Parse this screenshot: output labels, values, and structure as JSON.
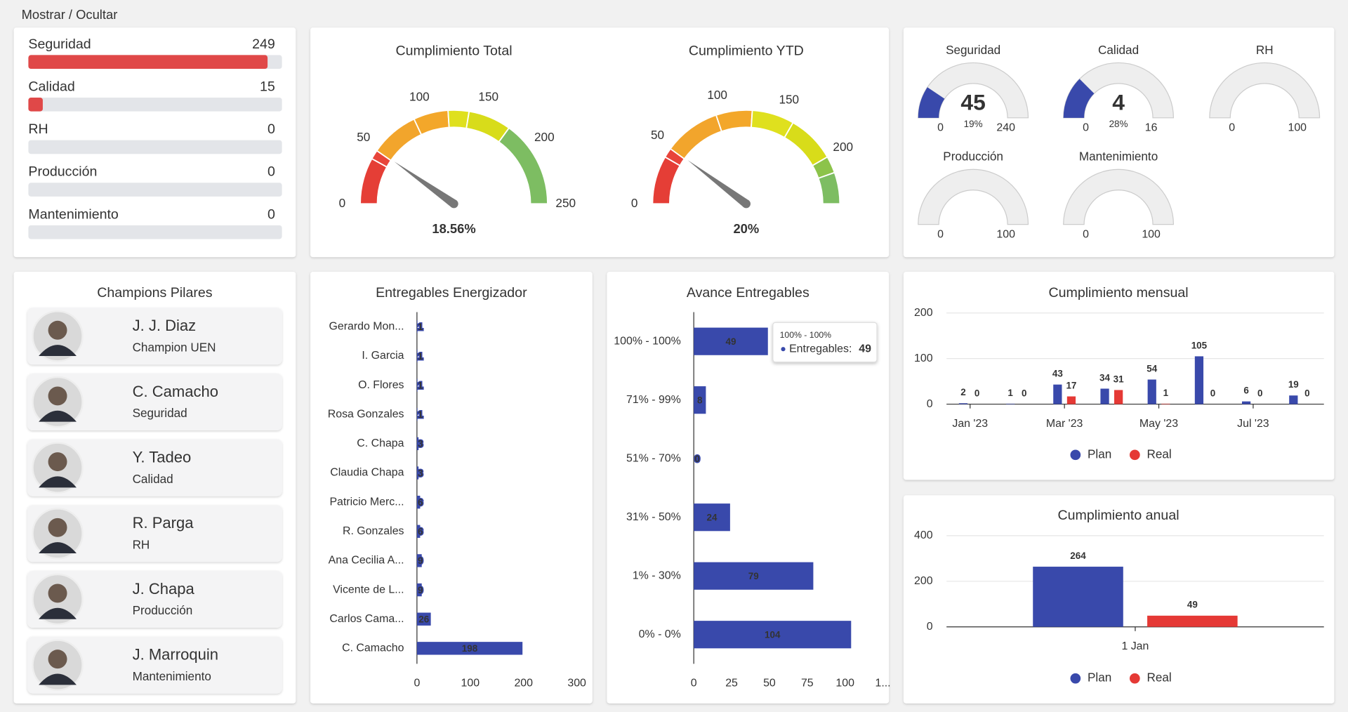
{
  "header": {
    "title": "Mostrar / Ocultar"
  },
  "pillars": {
    "xlim": [
      0,
      264
    ],
    "color": "#e04848",
    "track": "#e3e5e9",
    "items": [
      {
        "name": "Seguridad",
        "value": 249
      },
      {
        "name": "Calidad",
        "value": 15
      },
      {
        "name": "RH",
        "value": 0
      },
      {
        "name": "Producción",
        "value": 0
      },
      {
        "name": "Mantenimiento",
        "value": 0
      }
    ]
  },
  "gauges": [
    {
      "title": "Cumplimiento Total",
      "range": [
        0,
        250
      ],
      "ticks": [
        0,
        50,
        100,
        150,
        200,
        250
      ],
      "needle": 49,
      "label": "18.56%",
      "bands": [
        {
          "from": 0,
          "to": 40,
          "color": "#e53e36"
        },
        {
          "from": 40,
          "to": 48,
          "color": "#e8453a"
        },
        {
          "from": 48,
          "to": 90,
          "color": "#f2a52c"
        },
        {
          "from": 90,
          "to": 120,
          "color": "#f3a72a"
        },
        {
          "from": 120,
          "to": 138,
          "color": "#dfe01e"
        },
        {
          "from": 138,
          "to": 175,
          "color": "#d8dc1a"
        },
        {
          "from": 175,
          "to": 250,
          "color": "#7dbd62"
        }
      ]
    },
    {
      "title": "Cumplimiento YTD",
      "range": [
        0,
        240
      ],
      "ticks": [
        0,
        50,
        100,
        150,
        200
      ],
      "needle": 49,
      "label": "20%",
      "bands": [
        {
          "from": 0,
          "to": 40,
          "color": "#e53e36"
        },
        {
          "from": 40,
          "to": 48,
          "color": "#e8453a"
        },
        {
          "from": 48,
          "to": 95,
          "color": "#f2a52c"
        },
        {
          "from": 95,
          "to": 125,
          "color": "#f3a72a"
        },
        {
          "from": 125,
          "to": 160,
          "color": "#dfe01e"
        },
        {
          "from": 160,
          "to": 200,
          "color": "#d8dc1a"
        },
        {
          "from": 200,
          "to": 214,
          "color": "#8cc34a"
        },
        {
          "from": 214,
          "to": 240,
          "color": "#7dbd62"
        }
      ]
    }
  ],
  "mini_gauges": {
    "color": "#3949ab",
    "track": "#eeeeee",
    "items": [
      {
        "name": "Seguridad",
        "value": 45,
        "min": 0,
        "max": 240,
        "percent": "19%"
      },
      {
        "name": "Calidad",
        "value": 4,
        "min": 0,
        "max": 16,
        "percent": "28%"
      },
      {
        "name": "RH",
        "min": 0,
        "max": 100
      },
      {
        "name": "Producción",
        "min": 0,
        "max": 100
      },
      {
        "name": "Mantenimiento",
        "min": 0,
        "max": 100
      }
    ]
  },
  "champions": {
    "title": "Champions Pilares",
    "people": [
      {
        "name": "J. J. Diaz",
        "role": "Champion UEN"
      },
      {
        "name": "C. Camacho",
        "role": "Seguridad"
      },
      {
        "name": "Y. Tadeo",
        "role": "Calidad"
      },
      {
        "name": "R. Parga",
        "role": "RH"
      },
      {
        "name": "J. Chapa",
        "role": "Producción"
      },
      {
        "name": "J. Marroquin",
        "role": "Mantenimiento"
      }
    ]
  },
  "chart_data": [
    {
      "type": "hbar",
      "title": "Entregables Energizador",
      "color": "#3949ab",
      "categories": [
        "Gerardo Mon...",
        "I. Garcia",
        "O. Flores",
        "Rosa Gonzales",
        "C. Chapa",
        "Claudia Chapa",
        "Patricio Merc...",
        "R. Gonzales",
        "Ana Cecilia A...",
        "Vicente de L...",
        "Carlos Cama...",
        "C. Camacho"
      ],
      "values": [
        1,
        1,
        1,
        1,
        3,
        3,
        6,
        6,
        9,
        9,
        26,
        198
      ],
      "xlim": [
        0,
        300
      ],
      "xticks": [
        0,
        100,
        200,
        300
      ]
    },
    {
      "type": "hbar",
      "title": "Avance Entregables",
      "color": "#3949ab",
      "categories": [
        "100% - 100%",
        "71% - 99%",
        "51% - 70%",
        "31% - 50%",
        "1% - 30%",
        "0% - 0%"
      ],
      "values": [
        49,
        8,
        0,
        24,
        79,
        104
      ],
      "xlim": [
        0,
        125
      ],
      "xticks": [
        0,
        25,
        50,
        75,
        100,
        {
          "value": 125,
          "label": "1..."
        }
      ],
      "tooltip": {
        "title": "100% - 100%",
        "series": "Entregables:"
      }
    },
    {
      "type": "bar",
      "title": "Cumplimiento mensual",
      "categories": [
        "Jan '23",
        null,
        "Mar '23",
        null,
        "May '23",
        null,
        "Jul '23",
        null
      ],
      "series": [
        {
          "name": "Plan",
          "color": "#3949ab",
          "values": [
            2,
            1,
            43,
            34,
            54,
            105,
            6,
            19
          ]
        },
        {
          "name": "Real",
          "color": "#e53935",
          "values": [
            0,
            0,
            17,
            31,
            1,
            0,
            0,
            0
          ]
        }
      ],
      "ylim": [
        0,
        200
      ],
      "yticks": [
        0,
        100,
        200
      ],
      "grid": true
    },
    {
      "type": "bar",
      "title": "Cumplimiento anual",
      "categories": [
        "1 Jan"
      ],
      "series": [
        {
          "name": "Plan",
          "color": "#3949ab",
          "values": [
            264
          ]
        },
        {
          "name": "Real",
          "color": "#e53935",
          "values": [
            49
          ]
        }
      ],
      "ylim": [
        0,
        400
      ],
      "yticks": [
        0,
        200,
        400
      ],
      "grid": true
    }
  ]
}
